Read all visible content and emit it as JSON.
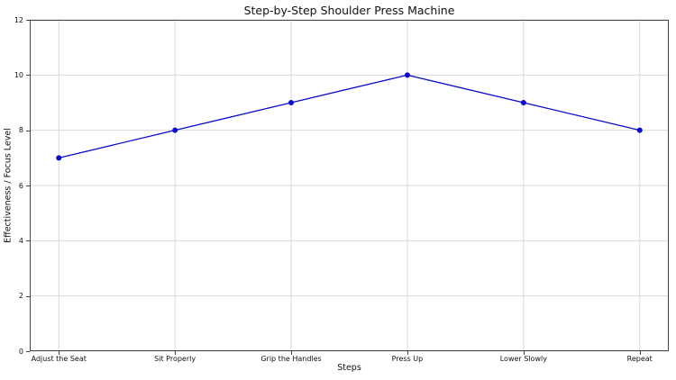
{
  "figure": {
    "background": "#ffffff"
  },
  "chart_data": {
    "type": "line",
    "title": "Step-by-Step Shoulder Press Machine",
    "xlabel": "Steps",
    "ylabel": "Effectiveness / Focus Level",
    "categories": [
      "Adjust the Seat",
      "Sit Properly",
      "Grip the Handles",
      "Press Up",
      "Lower Slowly",
      "Repeat"
    ],
    "values": [
      7,
      8,
      9,
      10,
      9,
      8
    ],
    "ylim": [
      0,
      12
    ],
    "yticks": [
      0,
      2,
      4,
      6,
      8,
      10,
      12
    ],
    "grid": true,
    "legend": "none",
    "line_color": "#0b0bcc",
    "marker_color": "#0b0bcc",
    "grid_color": "#d9d9d9",
    "spine_color": "#444444",
    "tick_color": "#444444"
  }
}
